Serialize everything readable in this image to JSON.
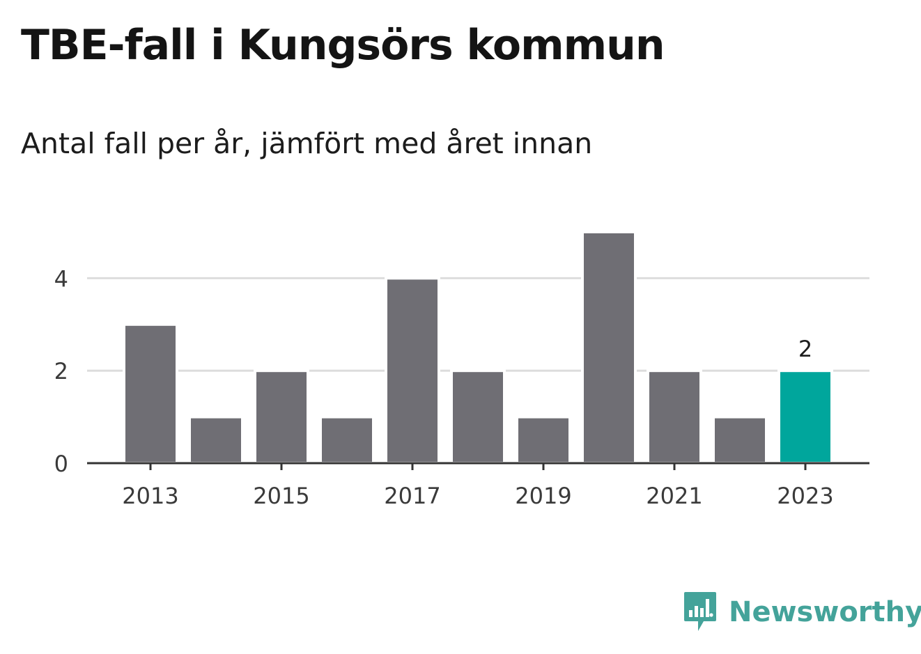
{
  "title": "TBE-fall i Kungsörs kommun",
  "subtitle": "Antal fall per år, jämfört med året innan",
  "brand": {
    "name": "Newsworthy",
    "icon": "newsworthy-logo-icon"
  },
  "colors": {
    "bar": "#6f6e74",
    "highlight": "#00a69c",
    "grid": "#dddddd",
    "axis": "#333333",
    "brand": "#44a39a"
  },
  "chart_data": {
    "type": "bar",
    "categories": [
      "2013",
      "2014",
      "2015",
      "2016",
      "2017",
      "2018",
      "2019",
      "2020",
      "2021",
      "2022",
      "2023"
    ],
    "values": [
      3,
      1,
      2,
      1,
      4,
      2,
      1,
      5,
      2,
      1,
      2
    ],
    "x_tick_labels": [
      "2013",
      "2015",
      "2017",
      "2019",
      "2021",
      "2023"
    ],
    "y_ticks": [
      0,
      2,
      4
    ],
    "ylim": [
      0,
      5
    ],
    "highlight_category": "2023",
    "data_labels": [
      {
        "category": "2023",
        "text": "2"
      }
    ],
    "grid": true,
    "xlabel": "",
    "ylabel": ""
  }
}
